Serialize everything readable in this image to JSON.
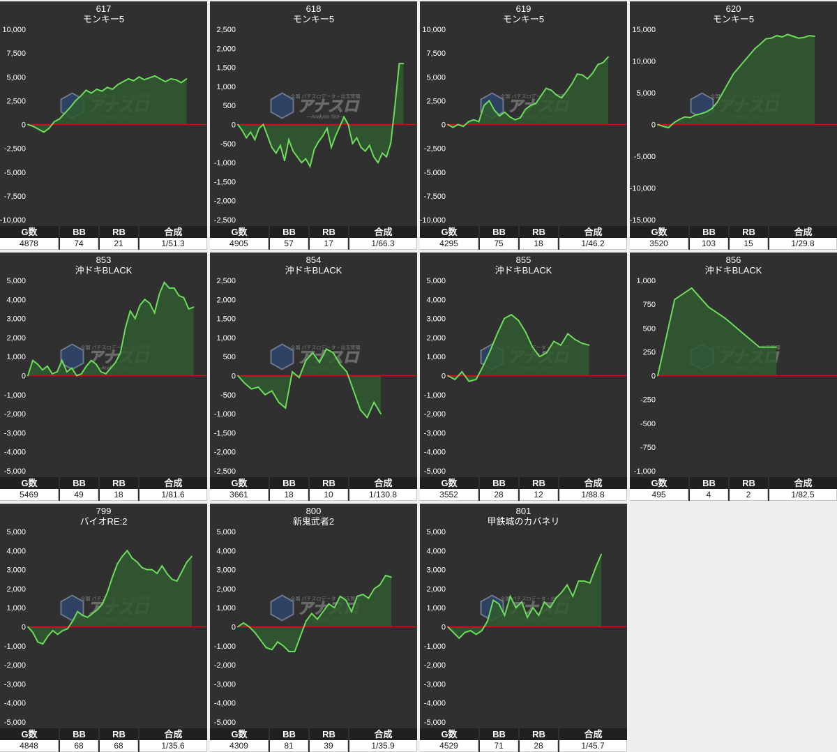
{
  "labels": {
    "games": "G数",
    "bb": "BB",
    "rb": "RB",
    "combined": "合成"
  },
  "watermark": {
    "line1": "全国 パチスロデータ・出玉管理",
    "logo": "アナスロ",
    "line2": "—Analysis Slot—"
  },
  "colors": {
    "background": "#efefef",
    "panel": "#303030",
    "line": "#6ddc5c",
    "area": "#2f5a2f",
    "zero_line": "#c41818",
    "axis_text": "#ffffff"
  },
  "chart_data": [
    {
      "type": "area",
      "machine": "617",
      "title": "モンキー5",
      "ylim": [
        -10000,
        10000
      ],
      "yticks": [
        10000,
        7500,
        5000,
        2500,
        0,
        -2500,
        -5000,
        -7500,
        -10000
      ],
      "tick_labels": [
        "10,000",
        "7,500",
        "5,000",
        "2,500",
        "0",
        "-2,500",
        "-5,000",
        "-7,500",
        "-10,000"
      ],
      "values": [
        0,
        -200,
        -500,
        -800,
        -400,
        300,
        600,
        1200,
        1800,
        2500,
        3000,
        3600,
        3300,
        3700,
        3500,
        3900,
        3700,
        4200,
        4500,
        4800,
        4600,
        5000,
        4700,
        4900,
        5100,
        4800,
        4500,
        4800,
        4700,
        4400,
        4800
      ],
      "stats": {
        "games": "4878",
        "bb": "74",
        "rb": "21",
        "combined": "1/51.3"
      }
    },
    {
      "type": "area",
      "machine": "618",
      "title": "モンキー5",
      "ylim": [
        -2500,
        2500
      ],
      "yticks": [
        2500,
        2000,
        1500,
        1000,
        500,
        0,
        -500,
        -1000,
        -1500,
        -2000,
        -2500
      ],
      "tick_labels": [
        "2,500",
        "2,000",
        "1,500",
        "1,000",
        "500",
        "0",
        "-500",
        "-1,000",
        "-1,500",
        "-2,000",
        "-2,500"
      ],
      "values": [
        0,
        -150,
        -350,
        -200,
        -400,
        -100,
        0,
        -300,
        -600,
        -750,
        -550,
        -950,
        -400,
        -700,
        -850,
        -1000,
        -900,
        -1100,
        -650,
        -450,
        -300,
        -100,
        -600,
        -300,
        -50,
        200,
        0,
        -500,
        -350,
        -600,
        -700,
        -550,
        -850,
        -1000,
        -750,
        -850,
        -500,
        500,
        1600,
        1600
      ],
      "stats": {
        "games": "4905",
        "bb": "57",
        "rb": "17",
        "combined": "1/66.3"
      }
    },
    {
      "type": "area",
      "machine": "619",
      "title": "モンキー5",
      "ylim": [
        -10000,
        10000
      ],
      "yticks": [
        10000,
        7500,
        5000,
        2500,
        0,
        -2500,
        -5000,
        -7500,
        -10000
      ],
      "tick_labels": [
        "10,000",
        "7,500",
        "5,000",
        "2,500",
        "0",
        "-2,500",
        "-5,000",
        "-7,500",
        "-10,000"
      ],
      "values": [
        0,
        -300,
        0,
        -200,
        300,
        500,
        300,
        2000,
        2500,
        1500,
        900,
        1300,
        800,
        500,
        700,
        1600,
        2000,
        2200,
        3000,
        3800,
        3600,
        3100,
        2800,
        3500,
        4300,
        5300,
        5200,
        4800,
        5400,
        6300,
        6500,
        7100
      ],
      "stats": {
        "games": "4295",
        "bb": "75",
        "rb": "18",
        "combined": "1/46.2"
      }
    },
    {
      "type": "area",
      "machine": "620",
      "title": "モンキー5",
      "ylim": [
        -15000,
        15000
      ],
      "yticks": [
        15000,
        10000,
        5000,
        0,
        -5000,
        -10000,
        -15000
      ],
      "tick_labels": [
        "15,000",
        "10,000",
        "5,000",
        "0",
        "-5,000",
        "-10,000",
        "-15,000"
      ],
      "values": [
        0,
        -300,
        -500,
        300,
        800,
        1200,
        1100,
        1500,
        1700,
        2000,
        2500,
        3500,
        5000,
        6500,
        8000,
        9000,
        10000,
        11000,
        12000,
        12700,
        13500,
        13600,
        14000,
        13800,
        14200,
        13900,
        13600,
        13700,
        14000,
        13900
      ],
      "stats": {
        "games": "3520",
        "bb": "103",
        "rb": "15",
        "combined": "1/29.8"
      }
    },
    {
      "type": "area",
      "machine": "853",
      "title": "沖ドキBLACK",
      "ylim": [
        -5000,
        5000
      ],
      "yticks": [
        5000,
        4000,
        3000,
        2000,
        1000,
        0,
        -1000,
        -2000,
        -3000,
        -4000,
        -5000
      ],
      "tick_labels": [
        "5,000",
        "4,000",
        "3,000",
        "2,000",
        "1,000",
        "0",
        "-1,000",
        "-2,000",
        "-3,000",
        "-4,000",
        "-5,000"
      ],
      "values": [
        0,
        800,
        600,
        300,
        500,
        100,
        200,
        800,
        200,
        400,
        0,
        100,
        500,
        800,
        600,
        200,
        100,
        400,
        700,
        1200,
        2500,
        3400,
        3000,
        3700,
        4000,
        3800,
        3300,
        4300,
        4900,
        4600,
        4600,
        4200,
        4100,
        3500,
        3600
      ],
      "stats": {
        "games": "5469",
        "bb": "49",
        "rb": "18",
        "combined": "1/81.6"
      }
    },
    {
      "type": "area",
      "machine": "854",
      "title": "沖ドキBLACK",
      "ylim": [
        -2500,
        2500
      ],
      "yticks": [
        2500,
        2000,
        1500,
        1000,
        500,
        0,
        -500,
        -1000,
        -1500,
        -2000,
        -2500
      ],
      "tick_labels": [
        "2,500",
        "2,000",
        "1,500",
        "1,000",
        "500",
        "0",
        "-500",
        "-1,000",
        "-1,500",
        "-2,000",
        "-2,500"
      ],
      "values": [
        0,
        -200,
        -350,
        -300,
        -500,
        -400,
        -700,
        -850,
        100,
        -50,
        400,
        600,
        350,
        700,
        600,
        300,
        100,
        -400,
        -900,
        -1100,
        -700,
        -1000
      ],
      "stats": {
        "games": "3661",
        "bb": "18",
        "rb": "10",
        "combined": "1/130.8"
      }
    },
    {
      "type": "area",
      "machine": "855",
      "title": "沖ドキBLACK",
      "ylim": [
        -5000,
        5000
      ],
      "yticks": [
        5000,
        4000,
        3000,
        2000,
        1000,
        0,
        -1000,
        -2000,
        -3000,
        -4000,
        -5000
      ],
      "tick_labels": [
        "5,000",
        "4,000",
        "3,000",
        "2,000",
        "1,000",
        "0",
        "-1,000",
        "-2,000",
        "-3,000",
        "-4,000",
        "-5,000"
      ],
      "values": [
        0,
        -200,
        200,
        -300,
        -200,
        500,
        1300,
        2200,
        3000,
        3200,
        2900,
        2300,
        1500,
        1000,
        1200,
        1800,
        1600,
        2200,
        1900,
        1700,
        1600
      ],
      "stats": {
        "games": "3552",
        "bb": "28",
        "rb": "12",
        "combined": "1/88.8"
      }
    },
    {
      "type": "area",
      "machine": "856",
      "title": "沖ドキBLACK",
      "ylim": [
        -1000,
        1000
      ],
      "yticks": [
        1000,
        750,
        500,
        250,
        0,
        -250,
        -500,
        -750,
        -1000
      ],
      "tick_labels": [
        "1,000",
        "750",
        "500",
        "250",
        "0",
        "-250",
        "-500",
        "-750",
        "-1,000"
      ],
      "values": [
        0,
        800,
        920,
        720,
        600,
        450,
        300,
        300
      ],
      "stats": {
        "games": "495",
        "bb": "4",
        "rb": "2",
        "combined": "1/82.5"
      }
    },
    {
      "type": "area",
      "machine": "799",
      "title": "バイオRE:2",
      "ylim": [
        -5000,
        5000
      ],
      "yticks": [
        5000,
        4000,
        3000,
        2000,
        1000,
        0,
        -1000,
        -2000,
        -3000,
        -4000,
        -5000
      ],
      "tick_labels": [
        "5,000",
        "4,000",
        "3,000",
        "2,000",
        "1,000",
        "0",
        "-1,000",
        "-2,000",
        "-3,000",
        "-4,000",
        "-5,000"
      ],
      "values": [
        0,
        -300,
        -800,
        -900,
        -500,
        -200,
        -400,
        -200,
        -100,
        300,
        800,
        600,
        500,
        700,
        900,
        1200,
        1800,
        2600,
        3300,
        3700,
        4000,
        3600,
        3400,
        3100,
        3000,
        3000,
        2800,
        3200,
        2800,
        2500,
        2400,
        2900,
        3400,
        3700
      ],
      "stats": {
        "games": "4848",
        "bb": "68",
        "rb": "68",
        "combined": "1/35.6"
      }
    },
    {
      "type": "area",
      "machine": "800",
      "title": "新鬼武者2",
      "ylim": [
        -5000,
        5000
      ],
      "yticks": [
        5000,
        4000,
        3000,
        2000,
        1000,
        0,
        -1000,
        -2000,
        -3000,
        -4000,
        -5000
      ],
      "tick_labels": [
        "5,000",
        "4,000",
        "3,000",
        "2,000",
        "1,000",
        "0",
        "-1,000",
        "-2,000",
        "-3,000",
        "-4,000",
        "-5,000"
      ],
      "values": [
        0,
        200,
        0,
        -300,
        -700,
        -1100,
        -1200,
        -800,
        -1000,
        -1300,
        -1300,
        -500,
        300,
        700,
        400,
        800,
        1200,
        1000,
        1600,
        1400,
        800,
        1600,
        1700,
        1500,
        2000,
        2200,
        2700,
        2600
      ],
      "stats": {
        "games": "4309",
        "bb": "81",
        "rb": "39",
        "combined": "1/35.9"
      }
    },
    {
      "type": "area",
      "machine": "801",
      "title": "甲鉄城のカバネリ",
      "ylim": [
        -5000,
        5000
      ],
      "yticks": [
        5000,
        4000,
        3000,
        2000,
        1000,
        0,
        -1000,
        -2000,
        -3000,
        -4000,
        -5000
      ],
      "tick_labels": [
        "5,000",
        "4,000",
        "3,000",
        "2,000",
        "1,000",
        "0",
        "-1,000",
        "-2,000",
        "-3,000",
        "-4,000",
        "-5,000"
      ],
      "values": [
        0,
        -300,
        -600,
        -300,
        -200,
        -400,
        -200,
        300,
        1400,
        1200,
        600,
        1600,
        1000,
        1300,
        500,
        1000,
        600,
        1300,
        1000,
        1500,
        1800,
        2200,
        1600,
        2400,
        2400,
        2300,
        3100,
        3800
      ],
      "stats": {
        "games": "4529",
        "bb": "71",
        "rb": "28",
        "combined": "1/45.7"
      }
    }
  ]
}
